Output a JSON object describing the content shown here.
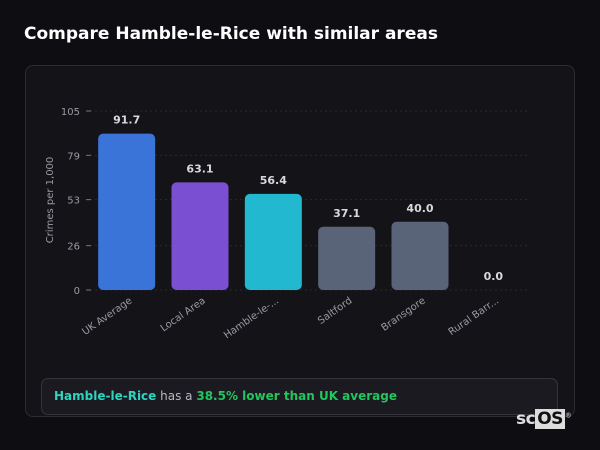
{
  "header": {
    "title": "Compare Hamble-le-Rice with similar areas"
  },
  "chart_data": {
    "type": "bar",
    "title": "",
    "xlabel": "",
    "ylabel": "Crimes per 1,000",
    "ylim": [
      0,
      105
    ],
    "yticks": [
      0,
      26,
      53,
      79,
      105
    ],
    "grid": true,
    "categories": [
      "UK Average",
      "Local Area",
      "Hamble-le-...",
      "Saltford",
      "Bransgore",
      "Rural Barr..."
    ],
    "values": [
      91.7,
      63.1,
      56.4,
      37.1,
      40.0,
      0.0
    ],
    "value_labels": [
      "91.7",
      "63.1",
      "56.4",
      "37.1",
      "40.0",
      "0.0"
    ],
    "colors": [
      "#3b74d9",
      "#7b4fd1",
      "#22b8cf",
      "#5a6478",
      "#5a6478",
      "#5a6478"
    ]
  },
  "summary": {
    "area": "Hamble-le-Rice",
    "connector": "has a",
    "comparison": "38.5% lower than UK average"
  },
  "logo": {
    "text_a": "sc",
    "text_b": "OS",
    "mark": "®"
  }
}
